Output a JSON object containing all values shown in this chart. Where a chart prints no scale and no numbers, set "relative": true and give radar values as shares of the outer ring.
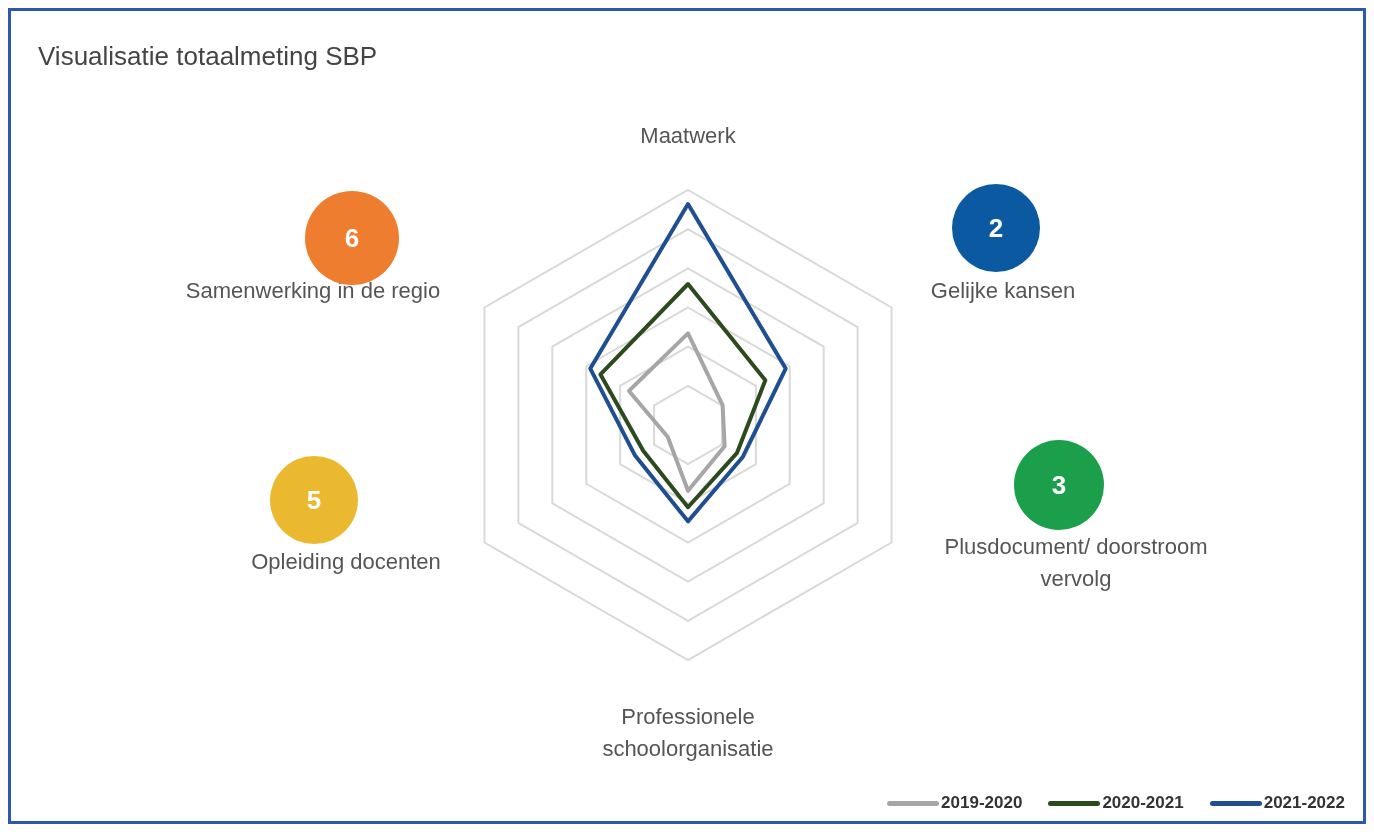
{
  "chart_data": {
    "type": "radar",
    "title": "Visualisatie totaalmeting SBP",
    "categories": [
      "Maatwerk",
      "Gelijke kansen",
      "Plusdocument/ doorstroom vervolg",
      "Professionele schoolorganisatie",
      "Opleiding docenten",
      "Samenwerking in de regio"
    ],
    "relative": true,
    "series": [
      {
        "name": "2019-2020",
        "color": "#a6a6a6",
        "values": [
          0.39,
          0.17,
          0.18,
          0.28,
          0.1,
          0.29
        ]
      },
      {
        "name": "2020-2021",
        "color": "#2d4a1e",
        "values": [
          0.6,
          0.38,
          0.24,
          0.35,
          0.22,
          0.43
        ]
      },
      {
        "name": "2021-2022",
        "color": "#1f4e91",
        "values": [
          0.94,
          0.48,
          0.27,
          0.41,
          0.26,
          0.48
        ]
      }
    ],
    "annotations": [
      "6",
      "2",
      "3",
      "5"
    ],
    "grid": true,
    "legend": "bottom right",
    "line_style": "solid"
  }
}
